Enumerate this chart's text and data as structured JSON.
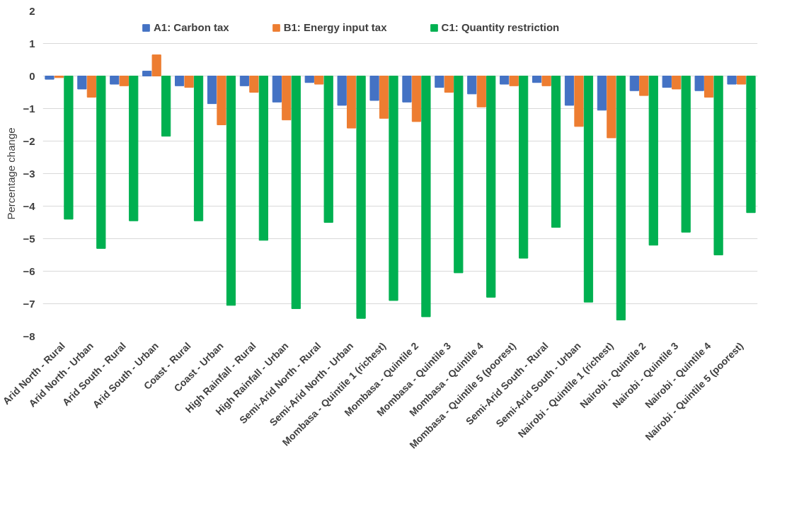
{
  "chart_data": {
    "type": "bar",
    "ylabel": "Percentage change",
    "categories": [
      "Arid North - Rural",
      "Arid North - Urban",
      "Arid South - Rural",
      "Arid South - Urban",
      "Coast - Rural",
      "Coast - Urban",
      "High Rainfall - Rural",
      "High Rainfall - Urban",
      "Semi-Arid North - Rural",
      "Semi-Arid North - Urban",
      "Mombasa - Quintile 1 (richest)",
      "Mombasa - Quintile 2",
      "Mombasa - Quintile 3",
      "Mombasa - Quintile 4",
      "Mombasa - Quintile 5 (poorest)",
      "Semi-Arid South - Rural",
      "Semi-Arid South - Urban",
      "Nairobi - Quintile 1 (richest)",
      "Nairobi - Quintile 2",
      "Nairobi - Quintile 3",
      "Nairobi - Quintile 4",
      "Nairobi - Quintile 5 (poorest)"
    ],
    "series": [
      {
        "name": "A1: Carbon tax",
        "color": "#4472c4",
        "values": [
          -0.1,
          -0.4,
          -0.25,
          0.15,
          -0.3,
          -0.85,
          -0.3,
          -0.8,
          -0.2,
          -0.9,
          -0.75,
          -0.8,
          -0.35,
          -0.55,
          -0.25,
          -0.2,
          -0.9,
          -1.05,
          -0.45,
          -0.35,
          -0.45,
          -0.25
        ]
      },
      {
        "name": "B1: Energy input tax",
        "color": "#ed7d31",
        "values": [
          -0.05,
          -0.65,
          -0.3,
          0.65,
          -0.35,
          -1.5,
          -0.5,
          -1.35,
          -0.25,
          -1.6,
          -1.3,
          -1.4,
          -0.5,
          -0.95,
          -0.3,
          -0.3,
          -1.55,
          -1.9,
          -0.6,
          -0.4,
          -0.65,
          -0.25
        ]
      },
      {
        "name": "C1: Quantity restriction",
        "color": "#00b050",
        "values": [
          -4.4,
          -5.3,
          -4.45,
          -1.85,
          -4.45,
          -7.05,
          -5.05,
          -7.15,
          -4.5,
          -7.45,
          -6.9,
          -7.4,
          -6.05,
          -6.8,
          -5.6,
          -4.65,
          -6.95,
          -7.5,
          -5.2,
          -4.8,
          -5.5,
          -4.2
        ]
      }
    ],
    "ylim": [
      -8,
      2
    ],
    "yticks": [
      -8,
      -7,
      -6,
      -5,
      -4,
      -3,
      -2,
      -1,
      0,
      1,
      2
    ],
    "grid": "y",
    "legend": "top"
  }
}
